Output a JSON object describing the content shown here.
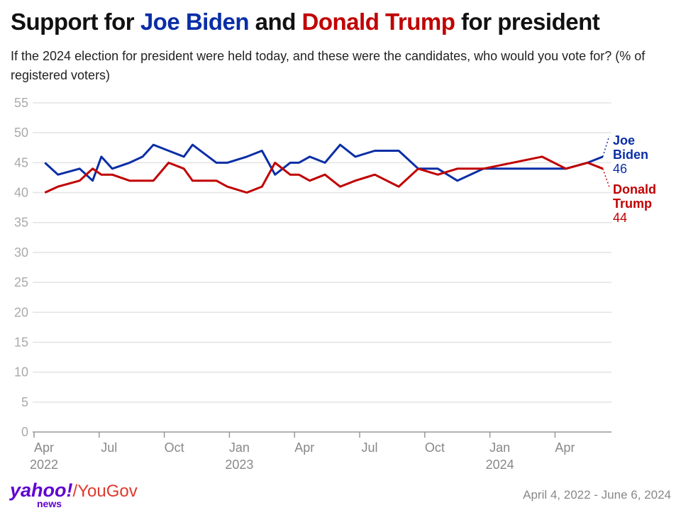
{
  "title": {
    "prefix": "Support for ",
    "biden": "Joe Biden",
    "mid": " and ",
    "trump": "Donald Trump",
    "suffix": " for president"
  },
  "subtitle": "If the 2024 election for president were held today, and these were the candidates, who would you vote for? (% of registered voters)",
  "footer": {
    "logo_yahoo": "yahoo!",
    "logo_news": "news",
    "logo_sep": "/",
    "logo_yougov": "YouGov",
    "date_range": "April 4, 2022 - June 6, 2024"
  },
  "chart_data": {
    "type": "line",
    "title": "Support for Joe Biden and Donald Trump for president",
    "xlabel": "",
    "ylabel": "% of registered voters",
    "ylim": [
      0,
      55
    ],
    "yticks": [
      0,
      5,
      10,
      15,
      20,
      25,
      30,
      35,
      40,
      45,
      50,
      55
    ],
    "x_unit": "months since April 1, 2022",
    "xlim": [
      0,
      26.6
    ],
    "xticks": [
      {
        "x": 0,
        "label": "Apr",
        "year": "2022"
      },
      {
        "x": 3,
        "label": "Jul",
        "year": ""
      },
      {
        "x": 6,
        "label": "Oct",
        "year": ""
      },
      {
        "x": 9,
        "label": "Jan",
        "year": "2023"
      },
      {
        "x": 12,
        "label": "Apr",
        "year": ""
      },
      {
        "x": 15,
        "label": "Jul",
        "year": ""
      },
      {
        "x": 18,
        "label": "Oct",
        "year": ""
      },
      {
        "x": 21,
        "label": "Jan",
        "year": "2024"
      },
      {
        "x": 24,
        "label": "Apr",
        "year": ""
      }
    ],
    "x": [
      0.5,
      1.1,
      2.1,
      2.7,
      3.1,
      3.6,
      4.4,
      5.0,
      5.5,
      6.2,
      6.9,
      7.3,
      8.4,
      8.9,
      9.8,
      10.5,
      11.1,
      11.8,
      12.2,
      12.7,
      13.4,
      14.1,
      14.8,
      15.7,
      16.8,
      17.7,
      18.6,
      19.5,
      20.7,
      23.4,
      24.5,
      25.5,
      26.2
    ],
    "series": [
      {
        "name": "Joe Biden",
        "line1": "Joe",
        "line2": "Biden",
        "last": "46",
        "color": "#0a2ea6",
        "values": [
          45,
          43,
          44,
          42,
          46,
          44,
          45,
          46,
          48,
          47,
          46,
          48,
          45,
          45,
          46,
          47,
          43,
          45,
          45,
          46,
          45,
          48,
          46,
          47,
          47,
          44,
          44,
          42,
          44,
          44,
          44,
          45,
          46
        ]
      },
      {
        "name": "Donald Trump",
        "line1": "Donald",
        "line2": "Trump",
        "last": "44",
        "color": "#c00000",
        "values": [
          40,
          41,
          42,
          44,
          43,
          43,
          42,
          42,
          42,
          45,
          44,
          42,
          42,
          41,
          40,
          41,
          45,
          43,
          43,
          42,
          43,
          41,
          42,
          43,
          41,
          44,
          43,
          44,
          44,
          46,
          44,
          45,
          44
        ]
      }
    ],
    "grid": true,
    "legend": "direct-labels-right"
  }
}
